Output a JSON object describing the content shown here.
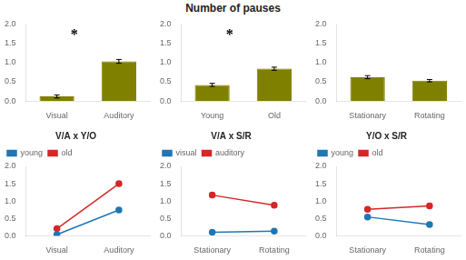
{
  "title": "Number of pauses",
  "chart_data": [
    {
      "type": "bar",
      "categories": [
        "Visual",
        "Auditory"
      ],
      "values": [
        0.12,
        1.03
      ],
      "errors": [
        0.04,
        0.05
      ],
      "color": "#808000",
      "ylim": [
        0,
        2
      ],
      "yticks": [
        {
          "value": 0,
          "label": "0.0"
        },
        {
          "value": 0.5,
          "label": "0.5"
        },
        {
          "value": 1,
          "label": "1.0"
        },
        {
          "value": 1.5,
          "label": "1.5"
        },
        {
          "value": 2,
          "label": "2.0"
        }
      ],
      "grid": false,
      "annotations": [
        {
          "text": "*",
          "x": 0.28,
          "y": 1.7
        }
      ]
    },
    {
      "type": "bar",
      "categories": [
        "Young",
        "Old"
      ],
      "values": [
        0.42,
        0.84
      ],
      "errors": [
        0.04,
        0.04
      ],
      "color": "#808000",
      "ylim": [
        0,
        2
      ],
      "yticks": [
        {
          "value": 0,
          "label": "0.0"
        },
        {
          "value": 0.5,
          "label": "0.5"
        },
        {
          "value": 1,
          "label": "1.0"
        },
        {
          "value": 1.5,
          "label": "1.5"
        },
        {
          "value": 2,
          "label": "2.0"
        }
      ],
      "grid": false,
      "annotations": [
        {
          "text": "*",
          "x": 0.28,
          "y": 1.7
        }
      ]
    },
    {
      "type": "bar",
      "categories": [
        "Stationary",
        "Rotating"
      ],
      "values": [
        0.62,
        0.53
      ],
      "errors": [
        0.04,
        0.03
      ],
      "color": "#808000",
      "ylim": [
        0,
        2
      ],
      "yticks": [
        {
          "value": 0,
          "label": "0.0"
        },
        {
          "value": 0.5,
          "label": "0.5"
        },
        {
          "value": 1,
          "label": "1.0"
        },
        {
          "value": 1.5,
          "label": "1.5"
        },
        {
          "value": 2,
          "label": "2.0"
        }
      ],
      "grid": false
    },
    {
      "type": "line",
      "title": "V/A x Y/O",
      "categories": [
        "Visual",
        "Auditory"
      ],
      "series": [
        {
          "name": "young",
          "color": "#1f77b4",
          "marker": "circle",
          "values": [
            0.03,
            0.74
          ],
          "errors": [
            0.03,
            0.05
          ]
        },
        {
          "name": "old",
          "color": "#d62728",
          "marker": "circle",
          "values": [
            0.2,
            1.5
          ],
          "errors": [
            0.03,
            0.06
          ]
        }
      ],
      "ylim": [
        0,
        2
      ],
      "yticks": [
        {
          "value": 0,
          "label": "0.0"
        },
        {
          "value": 0.5,
          "label": "0.5"
        },
        {
          "value": 1,
          "label": "1.0"
        },
        {
          "value": 1.5,
          "label": "1.5"
        },
        {
          "value": 2,
          "label": "2.0"
        }
      ],
      "grid": false,
      "legend": "upper left"
    },
    {
      "type": "line",
      "title": "V/A x S/R",
      "categories": [
        "Stationary",
        "Rotating"
      ],
      "series": [
        {
          "name": "visual",
          "color": "#1f77b4",
          "marker": "circle",
          "values": [
            0.1,
            0.13
          ],
          "errors": [
            0.02,
            0.02
          ]
        },
        {
          "name": "auditory",
          "color": "#d62728",
          "marker": "circle",
          "values": [
            1.17,
            0.88
          ],
          "errors": [
            0.06,
            0.06
          ]
        }
      ],
      "ylim": [
        0,
        2
      ],
      "yticks": [
        {
          "value": 0,
          "label": "0.0"
        },
        {
          "value": 0.5,
          "label": "0.5"
        },
        {
          "value": 1,
          "label": "1.0"
        },
        {
          "value": 1.5,
          "label": "1.5"
        },
        {
          "value": 2,
          "label": "2.0"
        }
      ],
      "grid": false,
      "legend": "upper left"
    },
    {
      "type": "line",
      "title": "Y/O x S/R",
      "categories": [
        "Stationary",
        "Rotating"
      ],
      "series": [
        {
          "name": "young",
          "color": "#1f77b4",
          "marker": "circle",
          "values": [
            0.54,
            0.32
          ],
          "errors": [
            0.05,
            0.04
          ]
        },
        {
          "name": "old",
          "color": "#d62728",
          "marker": "circle",
          "values": [
            0.76,
            0.86
          ],
          "errors": [
            0.05,
            0.06
          ]
        }
      ],
      "ylim": [
        0,
        2
      ],
      "yticks": [
        {
          "value": 0,
          "label": "0.0"
        },
        {
          "value": 0.5,
          "label": "0.5"
        },
        {
          "value": 1,
          "label": "1.0"
        },
        {
          "value": 1.5,
          "label": "1.5"
        },
        {
          "value": 2,
          "label": "2.0"
        }
      ],
      "grid": false,
      "legend": "upper left"
    }
  ]
}
